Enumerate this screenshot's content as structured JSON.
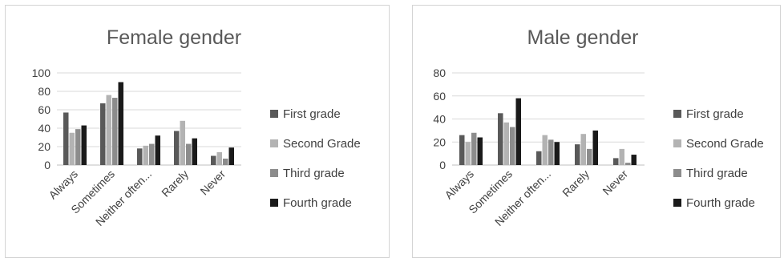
{
  "chart_data": [
    {
      "type": "bar",
      "title": "Female gender",
      "categories": [
        "Always",
        "Sometimes",
        "Neither often...",
        "Rarely",
        "Never"
      ],
      "series": [
        {
          "name": "First grade",
          "values": [
            57,
            67,
            18,
            37,
            10
          ],
          "color": "#595959"
        },
        {
          "name": "Second Grade",
          "values": [
            35,
            76,
            21,
            48,
            14
          ],
          "color": "#b3b3b3"
        },
        {
          "name": "Third grade",
          "values": [
            39,
            73,
            23,
            23,
            7
          ],
          "color": "#8c8c8c"
        },
        {
          "name": "Fourth grade",
          "values": [
            43,
            90,
            32,
            29,
            19
          ],
          "color": "#1a1a1a"
        }
      ],
      "ylim": [
        0,
        100
      ],
      "yticks": [
        0,
        20,
        40,
        60,
        80,
        100
      ],
      "grid": true,
      "legend": "right"
    },
    {
      "type": "bar",
      "title": "Male gender",
      "categories": [
        "Always",
        "Sometimes",
        "Neither often...",
        "Rarely",
        "Never"
      ],
      "series": [
        {
          "name": "First grade",
          "values": [
            26,
            45,
            12,
            18,
            6
          ],
          "color": "#595959"
        },
        {
          "name": "Second Grade",
          "values": [
            20,
            37,
            26,
            27,
            14
          ],
          "color": "#b3b3b3"
        },
        {
          "name": "Third grade",
          "values": [
            28,
            33,
            22,
            14,
            2
          ],
          "color": "#8c8c8c"
        },
        {
          "name": "Fourth grade",
          "values": [
            24,
            58,
            20,
            30,
            9
          ],
          "color": "#1a1a1a"
        }
      ],
      "ylim": [
        0,
        80
      ],
      "yticks": [
        0,
        20,
        40,
        60,
        80
      ],
      "grid": true,
      "legend": "right"
    }
  ]
}
